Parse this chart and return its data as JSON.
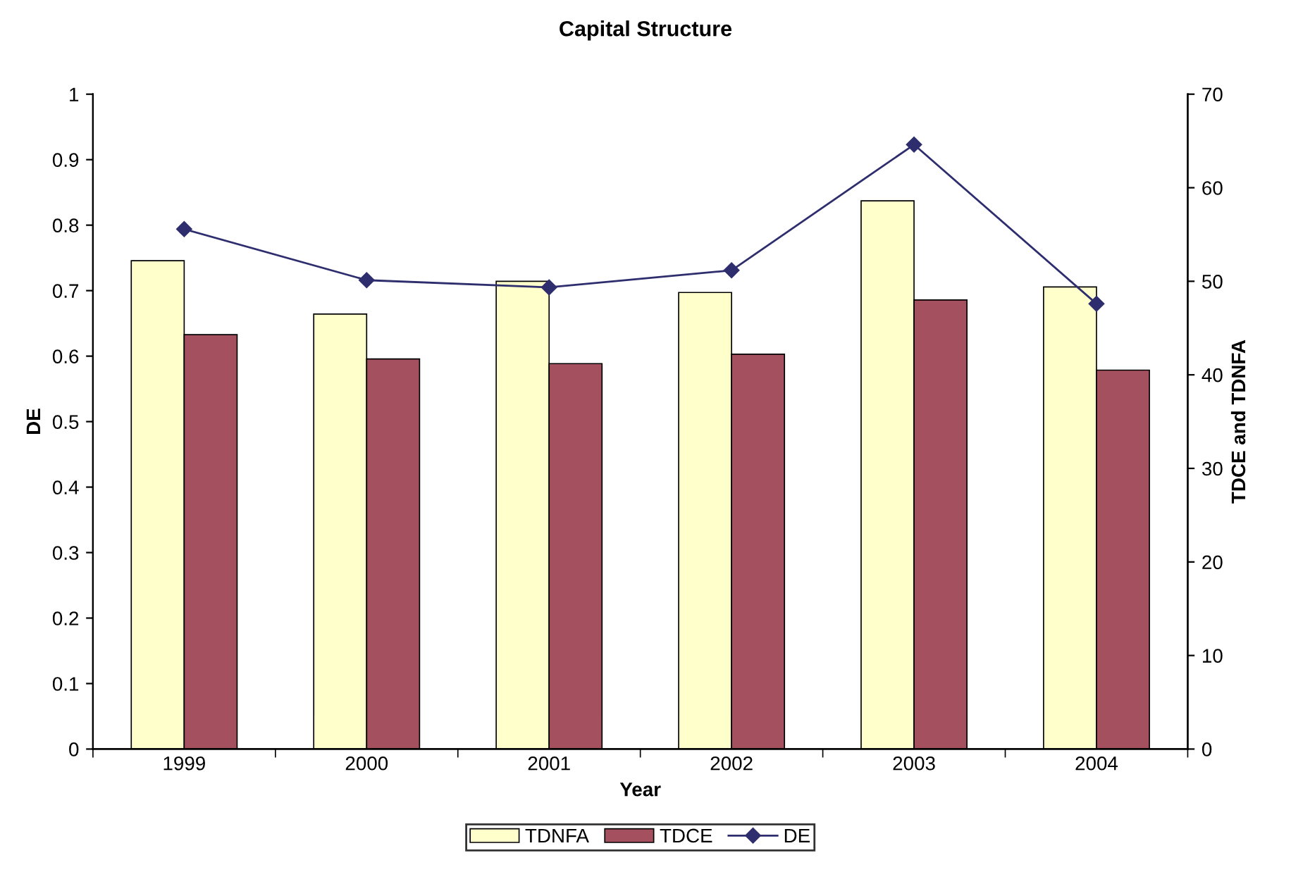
{
  "chart_data": {
    "type": "bar",
    "title": "Capital Structure",
    "xlabel": "Year",
    "ylabel": "DE",
    "y2label": "TDCE and TDNFA",
    "categories": [
      "1999",
      "2000",
      "2001",
      "2002",
      "2003",
      "2004"
    ],
    "series": [
      {
        "name": "TDNFA",
        "axis": "y2",
        "color": "#ffffcc",
        "values": [
          52.2,
          46.5,
          50.0,
          48.8,
          58.6,
          49.4
        ]
      },
      {
        "name": "TDCE",
        "axis": "y2",
        "color": "#a5505e",
        "values": [
          44.3,
          41.7,
          41.2,
          42.2,
          48.0,
          40.5
        ]
      },
      {
        "name": "DE",
        "type": "line",
        "axis": "y",
        "color": "#2e2e6e",
        "marker": "diamond",
        "values": [
          0.794,
          0.716,
          0.705,
          0.731,
          0.923,
          0.68
        ]
      }
    ],
    "ylim": [
      0,
      1
    ],
    "yticks": [
      0,
      0.1,
      0.2,
      0.3,
      0.4,
      0.5,
      0.6,
      0.7,
      0.8,
      0.9,
      1
    ],
    "y2lim": [
      0,
      70
    ],
    "y2ticks": [
      0,
      10,
      20,
      30,
      40,
      50,
      60,
      70
    ],
    "grid": false,
    "legend": "bottom"
  }
}
